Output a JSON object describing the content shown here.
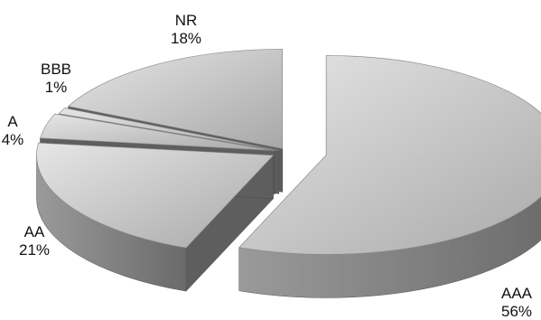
{
  "chart_data": {
    "type": "pie",
    "style": "3d-exploded",
    "slices": [
      {
        "label": "AAA",
        "value": 56,
        "display": "56%"
      },
      {
        "label": "AA",
        "value": 21,
        "display": "21%"
      },
      {
        "label": "A",
        "value": 4,
        "display": "4%"
      },
      {
        "label": "BBB",
        "value": 1,
        "display": "1%"
      },
      {
        "label": "NR",
        "value": 18,
        "display": "18%"
      }
    ],
    "colors": {
      "top_light": "#e6e6e6",
      "top_dark": "#a8a8a8",
      "side_light": "#9a9a9a",
      "side_dark": "#6a6a6a"
    },
    "legend": "none"
  }
}
